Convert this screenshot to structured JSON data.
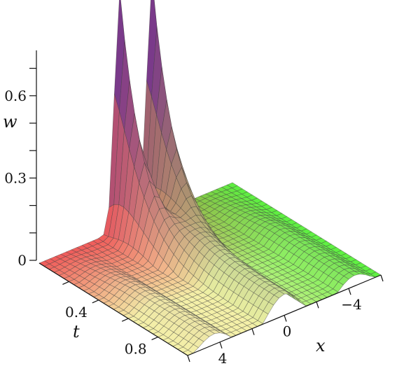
{
  "chart_data": {
    "type": "surface3d",
    "title": "",
    "xlabel": "x",
    "ylabel": "t",
    "zlabel": "w",
    "x_range": [
      -6,
      6
    ],
    "t_range": [
      0,
      1
    ],
    "z_range": [
      0,
      0.78
    ],
    "x_ticks": [
      {
        "value": 4,
        "label": "4"
      },
      {
        "value": 0,
        "label": "0"
      },
      {
        "value": -4,
        "label": "−4"
      }
    ],
    "t_ticks": [
      {
        "value": 0.4,
        "label": "0.4"
      },
      {
        "value": 0.8,
        "label": "0.8"
      }
    ],
    "z_ticks": [
      {
        "value": 0,
        "label": "0"
      },
      {
        "value": 0.3,
        "label": "0.3"
      },
      {
        "value": 0.6,
        "label": "0.6"
      }
    ],
    "surface": "two solitary peaks near x = -1 and x = 1 at t = 0, max w ≈ 0.87, decaying into oscillatory ripples as t increases",
    "grid_lines": true,
    "colors": {
      "near_t": "#f05a5a",
      "mid": "#f4f0a8",
      "far_x": "#5cf040",
      "peak": "#7a3a8a"
    }
  }
}
